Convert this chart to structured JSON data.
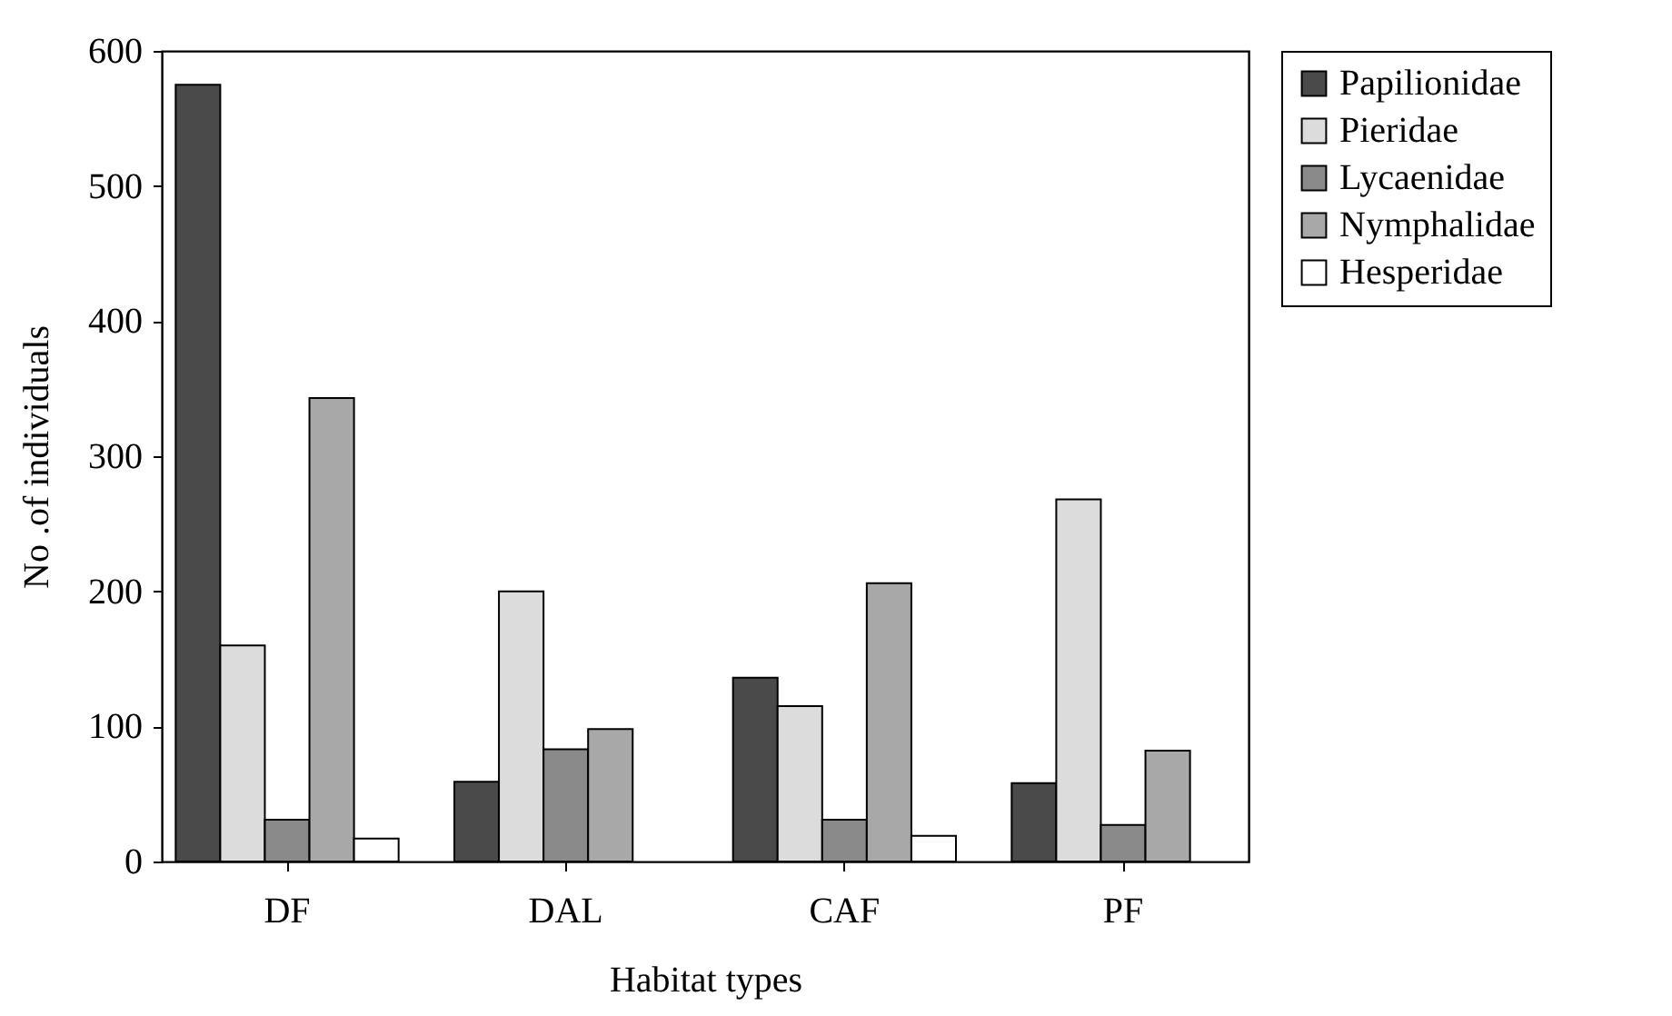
{
  "chart_data": {
    "type": "bar",
    "xlabel": "Habitat types",
    "ylabel": "No .of individuals",
    "categories": [
      "DF",
      "DAL",
      "CAF",
      "PF"
    ],
    "series": [
      {
        "name": "Papilionidae",
        "color": "#4a4a4a",
        "values": [
          575,
          59,
          136,
          58
        ]
      },
      {
        "name": "Pieridae",
        "color": "#dcdcdc",
        "values": [
          160,
          200,
          115,
          268
        ]
      },
      {
        "name": "Lycaenidae",
        "color": "#8a8a8a",
        "values": [
          31,
          83,
          31,
          27
        ]
      },
      {
        "name": "Nymphalidae",
        "color": "#a8a8a8",
        "values": [
          343,
          98,
          206,
          82
        ]
      },
      {
        "name": "Hesperidae",
        "color": "#ffffff",
        "values": [
          17,
          null,
          19,
          null
        ]
      }
    ],
    "ylim": [
      0,
      600
    ],
    "yticks": [
      0,
      100,
      200,
      300,
      400,
      500,
      600
    ],
    "grid": false,
    "legend": "right"
  }
}
